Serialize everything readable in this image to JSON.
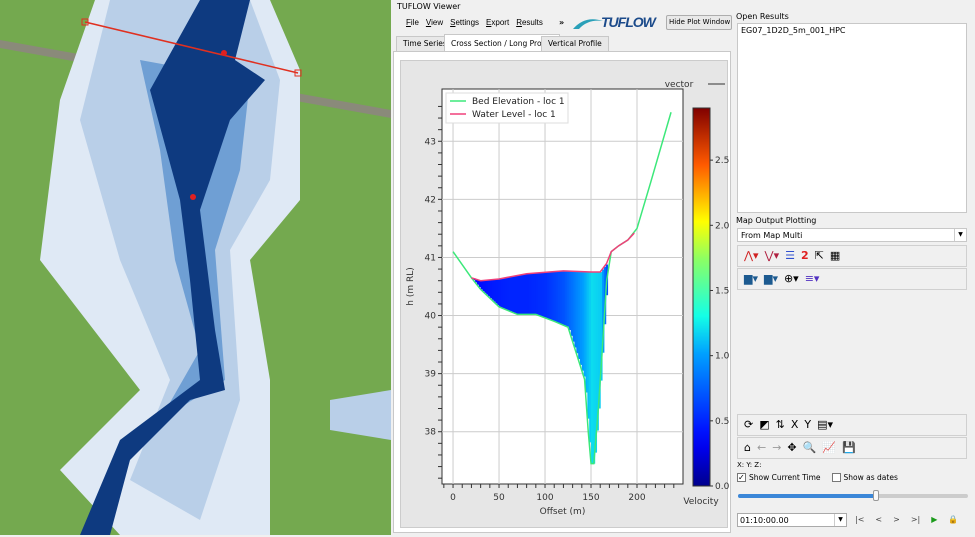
{
  "window": {
    "title": "TUFLOW Viewer"
  },
  "menu": [
    "File",
    "View",
    "Settings",
    "Export",
    "Results"
  ],
  "menu_overflow": "»",
  "logo_text": "TUFLOW",
  "hide_plot_button": "Hide Plot Window >>",
  "tabs": [
    {
      "label": "Time Series",
      "active": false
    },
    {
      "label": "Cross Section / Long Profile",
      "active": true
    },
    {
      "label": "Vertical Profile",
      "active": false
    }
  ],
  "open_results": {
    "label": "Open Results",
    "items": [
      "EG07_1D2D_5m_001_HPC"
    ]
  },
  "map_output": {
    "label": "Map Output Plotting",
    "selected": "From Map Multi"
  },
  "coords_label": "X:  Y:  Z:",
  "show_current_time": {
    "label": "Show Current Time",
    "checked": true
  },
  "show_as_dates": {
    "label": "Show as dates",
    "checked": false
  },
  "time_slider": {
    "fraction": 0.6
  },
  "time_value": "01:10:00.00",
  "nav": {
    "first": "|<",
    "prev": "<",
    "next": ">",
    "last": ">|"
  },
  "chart_data": {
    "type": "line",
    "xlabel": "Offset (m)",
    "ylabel": "h (m RL)",
    "xlim": [
      -12,
      250
    ],
    "ylim": [
      37.1,
      43.9
    ],
    "xticks": [
      0,
      50,
      100,
      150,
      200
    ],
    "yticks": [
      38,
      39,
      40,
      41,
      42,
      43
    ],
    "grid": true,
    "legend": "top-left",
    "vector_label": "vector",
    "series": [
      {
        "name": "Bed Elevation - loc 1",
        "color": "#3ce87a",
        "x": [
          0,
          20,
          30,
          50,
          70,
          90,
          110,
          125,
          135,
          143,
          147,
          150,
          153,
          158,
          163,
          167,
          172,
          180,
          190,
          200,
          215,
          237
        ],
        "y": [
          41.1,
          40.65,
          40.45,
          40.15,
          40.02,
          40.02,
          39.9,
          39.8,
          39.3,
          38.9,
          38.0,
          37.45,
          37.45,
          38.4,
          39.6,
          40.6,
          41.1,
          41.2,
          41.3,
          41.5,
          42.3,
          43.5
        ]
      },
      {
        "name": "Water Level - loc 1",
        "color": "#f0407a",
        "x": [
          20,
          30,
          50,
          80,
          120,
          150,
          160,
          167,
          172,
          180,
          190,
          197
        ],
        "y": [
          40.65,
          40.6,
          40.63,
          40.72,
          40.77,
          40.75,
          40.75,
          40.9,
          41.1,
          41.2,
          41.3,
          41.42
        ]
      }
    ],
    "velocity": {
      "x": [
        20,
        40,
        60,
        80,
        100,
        120,
        130,
        140,
        150,
        160,
        167
      ],
      "v": [
        0.35,
        0.45,
        0.5,
        0.5,
        0.55,
        0.7,
        0.85,
        1.0,
        1.2,
        1.15,
        0.6
      ]
    },
    "colorbar": {
      "label": "Velocity",
      "min": 0,
      "max": 2.9,
      "ticks": [
        "0.0",
        "0.5",
        "1.0",
        "1.5",
        "2.0",
        "2.5"
      ]
    }
  }
}
